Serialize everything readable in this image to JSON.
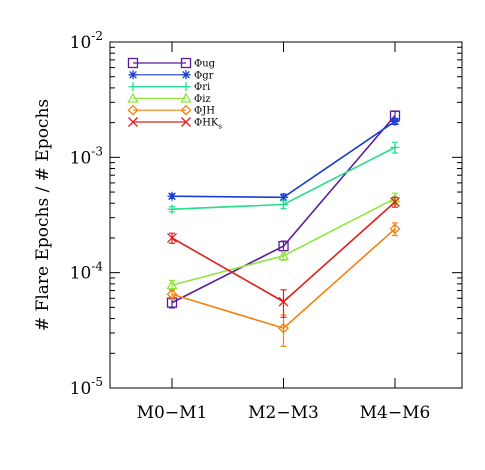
{
  "chart_data": {
    "type": "line",
    "ylabel": "# Flare Epochs / # Epochs",
    "xlabel": "",
    "y_scale": "log",
    "ylim": [
      1e-05,
      0.01
    ],
    "y_ticks": [
      {
        "value": 0.01,
        "base": "10",
        "exp": "-2"
      },
      {
        "value": 0.001,
        "base": "10",
        "exp": "-3"
      },
      {
        "value": 0.0001,
        "base": "10",
        "exp": "-4"
      },
      {
        "value": 1e-05,
        "base": "10",
        "exp": "-5"
      }
    ],
    "categories": [
      "M0−M1",
      "M2−M3",
      "M4−M6"
    ],
    "legend_position": "top-left",
    "series": [
      {
        "name": "Φug",
        "sub": "",
        "color": "#5b1a9e",
        "marker": "square",
        "values": [
          5.5e-05,
          0.00017,
          0.0023
        ],
        "err": [
          5.5e-06,
          1.8e-05,
          0.0002
        ]
      },
      {
        "name": "Φgr",
        "sub": "",
        "color": "#1a3ed6",
        "marker": "asterisk",
        "values": [
          0.00046,
          0.00045,
          0.00205
        ],
        "err": [
          2e-05,
          3e-05,
          0.00012
        ]
      },
      {
        "name": "Φri",
        "sub": "",
        "color": "#22e08a",
        "marker": "plus",
        "values": [
          0.000355,
          0.00039,
          0.00122
        ],
        "err": [
          1.8e-05,
          3e-05,
          0.00013
        ]
      },
      {
        "name": "Φiz",
        "sub": "",
        "color": "#8fe63c",
        "marker": "triangle",
        "values": [
          7.8e-05,
          0.00014,
          0.00044
        ],
        "err": [
          7.5e-06,
          1.2e-05,
          5e-05
        ]
      },
      {
        "name": "ΦJH",
        "sub": "",
        "color": "#f5820d",
        "marker": "diamond",
        "values": [
          6.5e-05,
          3.3e-05,
          0.00024
        ],
        "err": [
          6e-06,
          1e-05,
          3e-05
        ]
      },
      {
        "name": "ΦHK",
        "sub": "s",
        "color": "#e21d1d",
        "marker": "x",
        "values": [
          0.0002,
          5.6e-05,
          0.00041
        ],
        "err": [
          2e-05,
          1.5e-05,
          4e-05
        ]
      }
    ]
  }
}
